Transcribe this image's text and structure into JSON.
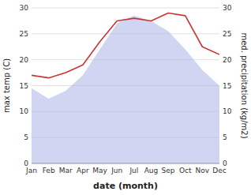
{
  "chart_data": {
    "type": "area",
    "xlabel": "date (month)",
    "ylabel": "max temp (C)",
    "y2label": "med. precipitation (kg/m2)",
    "categories": [
      "Jan",
      "Feb",
      "Mar",
      "Apr",
      "May",
      "Jun",
      "Jul",
      "Aug",
      "Sep",
      "Oct",
      "Nov",
      "Dec"
    ],
    "series": [
      {
        "type": "area",
        "color": "#aab4e8",
        "values": [
          14.5,
          12.5,
          14.0,
          17.0,
          22.0,
          27.0,
          28.5,
          27.5,
          25.5,
          22.0,
          18.0,
          15.0
        ]
      },
      {
        "type": "line",
        "color": "#cc3333",
        "axis": "y2",
        "values": [
          17.0,
          16.5,
          17.5,
          19.0,
          23.5,
          27.5,
          28.0,
          27.5,
          29.0,
          28.5,
          22.5,
          21.0
        ]
      }
    ],
    "ylim": [
      0,
      30
    ],
    "yticks": [
      0,
      5,
      10,
      15,
      20,
      25,
      30
    ],
    "y2lim": [
      0,
      30
    ],
    "y2ticks": [
      0,
      5,
      10,
      15,
      20,
      25,
      30
    ],
    "grid": true
  }
}
